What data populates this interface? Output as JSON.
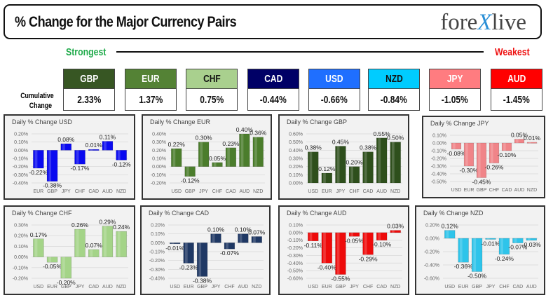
{
  "header": {
    "title": "% Change for the Major Currency Pairs",
    "logo": "forexlive"
  },
  "scale": {
    "strongest": "Strongest",
    "weakest": "Weakest"
  },
  "cumulative_label": [
    "Cumulative",
    "Change"
  ],
  "currencies": [
    {
      "code": "GBP",
      "value": "2.33%",
      "bg": "#375623",
      "fg": "#ffffff"
    },
    {
      "code": "EUR",
      "value": "1.37%",
      "bg": "#548235",
      "fg": "#ffffff"
    },
    {
      "code": "CHF",
      "value": "0.75%",
      "bg": "#a9d08e",
      "fg": "#111111"
    },
    {
      "code": "CAD",
      "value": "-0.44%",
      "bg": "#000066",
      "fg": "#ffffff"
    },
    {
      "code": "USD",
      "value": "-0.66%",
      "bg": "#1f6fff",
      "fg": "#ffffff"
    },
    {
      "code": "NZD",
      "value": "-0.84%",
      "bg": "#00ccff",
      "fg": "#111111"
    },
    {
      "code": "JPY",
      "value": "-1.05%",
      "bg": "#ff7c80",
      "fg": "#ffffff"
    },
    {
      "code": "AUD",
      "value": "-1.45%",
      "bg": "#ff0000",
      "fg": "#ffffff"
    }
  ],
  "chart_data": [
    {
      "type": "bar",
      "title": "Daily % Change USD",
      "categories": [
        "EUR",
        "GBP",
        "JPY",
        "CHF",
        "CAD",
        "AUD",
        "NZD"
      ],
      "values": [
        -0.22,
        -0.38,
        0.08,
        -0.17,
        0.01,
        0.11,
        -0.12
      ],
      "ylim": [
        -0.4,
        0.2
      ],
      "ytick_step": 0.1,
      "color": "#0a0af0",
      "grid": true
    },
    {
      "type": "bar",
      "title": "Daily % Change EUR",
      "categories": [
        "USD",
        "GBP",
        "JPY",
        "CHF",
        "CAD",
        "AUD",
        "NZD"
      ],
      "values": [
        0.22,
        -0.12,
        0.3,
        0.05,
        0.23,
        0.4,
        0.36
      ],
      "ylim": [
        -0.2,
        0.4
      ],
      "ytick_step": 0.1,
      "color": "#4b7d2c",
      "grid": true
    },
    {
      "type": "bar",
      "title": "Daily % Change GBP",
      "categories": [
        "USD",
        "EUR",
        "JPY",
        "CHF",
        "CAD",
        "AUD",
        "NZD"
      ],
      "values": [
        0.38,
        0.12,
        0.45,
        0.2,
        0.38,
        0.55,
        0.5
      ],
      "ylim": [
        0.0,
        0.6
      ],
      "ytick_step": 0.1,
      "color": "#2e4f1c",
      "grid": true
    },
    {
      "type": "bar",
      "title": "Daily % Change JPY",
      "categories": [
        "USD",
        "EUR",
        "GBP",
        "CHF",
        "CAD",
        "AUD",
        "NZD"
      ],
      "values": [
        -0.08,
        -0.3,
        -0.45,
        -0.26,
        -0.1,
        0.05,
        0.01
      ],
      "ylim": [
        -0.5,
        0.1
      ],
      "ytick_step": 0.1,
      "color": "#f08488",
      "grid": true
    },
    {
      "type": "bar",
      "title": "Daily % Change CHF",
      "categories": [
        "USD",
        "EUR",
        "GBP",
        "JPY",
        "CAD",
        "AUD",
        "NZD"
      ],
      "values": [
        0.17,
        -0.05,
        -0.2,
        0.26,
        0.07,
        0.29,
        0.24
      ],
      "ylim": [
        -0.2,
        0.3
      ],
      "ytick_step": 0.1,
      "color": "#a4d488",
      "grid": true
    },
    {
      "type": "bar",
      "title": "Daily % Change CAD",
      "categories": [
        "USD",
        "EUR",
        "GBP",
        "JPY",
        "CHF",
        "AUD",
        "NZD"
      ],
      "values": [
        -0.01,
        -0.23,
        -0.38,
        0.1,
        -0.07,
        0.1,
        0.07
      ],
      "ylim": [
        -0.4,
        0.2
      ],
      "ytick_step": 0.1,
      "color": "#1f3864",
      "grid": true
    },
    {
      "type": "bar",
      "title": "Daily % Change AUD",
      "categories": [
        "USD",
        "EUR",
        "GBP",
        "JPY",
        "CHF",
        "CAD",
        "NZD"
      ],
      "values": [
        -0.11,
        -0.4,
        -0.55,
        -0.05,
        -0.29,
        -0.1,
        0.03
      ],
      "ylim": [
        -0.6,
        0.1
      ],
      "ytick_step": 0.1,
      "color": "#ee0a0a",
      "grid": true
    },
    {
      "type": "bar",
      "title": "Daily % Change NZD",
      "categories": [
        "USD",
        "EUR",
        "GBP",
        "JPY",
        "CHF",
        "CAD",
        "AUD"
      ],
      "values": [
        0.12,
        -0.36,
        -0.5,
        -0.01,
        -0.24,
        -0.07,
        -0.03
      ],
      "ylim": [
        -0.6,
        0.2
      ],
      "ytick_step": 0.2,
      "color": "#2ec4ea",
      "grid": true
    }
  ]
}
